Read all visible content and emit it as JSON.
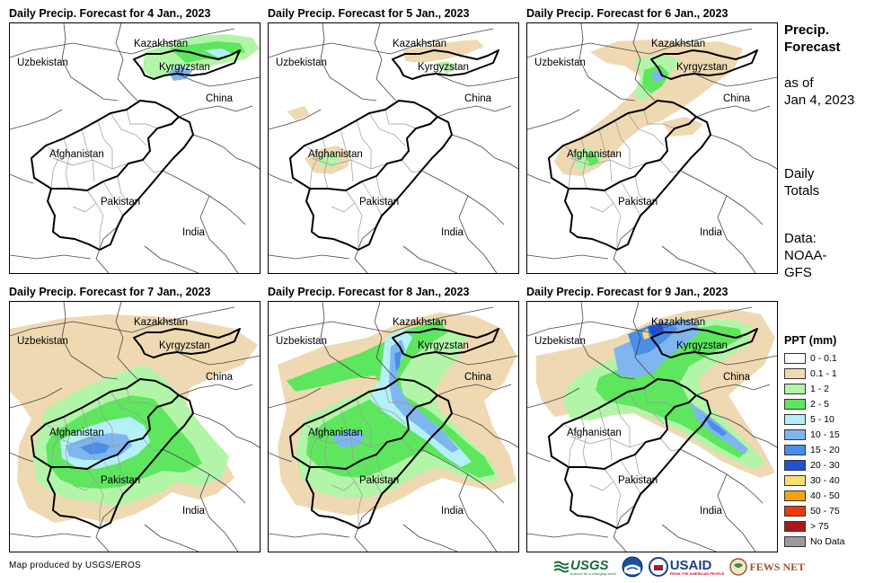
{
  "panels": [
    {
      "title": "Daily Precip. Forecast for 4 Jan., 2023"
    },
    {
      "title": "Daily Precip. Forecast for 5 Jan., 2023"
    },
    {
      "title": "Daily Precip. Forecast for 6 Jan., 2023"
    },
    {
      "title": "Daily Precip. Forecast for 7 Jan., 2023"
    },
    {
      "title": "Daily Precip. Forecast for 8 Jan., 2023"
    },
    {
      "title": "Daily Precip. Forecast for 9 Jan., 2023"
    }
  ],
  "map_labels": {
    "kazakhstan": "Kazakhstan",
    "uzbekistan": "Uzbekistan",
    "kyrgyzstan": "Kyrgyzstan",
    "china": "China",
    "afghanistan": "Afghanistan",
    "pakistan": "Pakistan",
    "india": "India"
  },
  "side": {
    "title": "Precip. Forecast",
    "as_of": "as of",
    "date": "Jan 4, 2023",
    "totals_line1": "Daily",
    "totals_line2": "Totals",
    "data_line1": "Data:",
    "data_line2": "NOAA-",
    "data_line3": "GFS"
  },
  "legend": {
    "title": "PPT (mm)",
    "items": [
      {
        "label": "0 - 0.1",
        "color": "#ffffff"
      },
      {
        "label": "0.1 - 1",
        "color": "#eed9b3"
      },
      {
        "label": "1 - 2",
        "color": "#b2f5a8"
      },
      {
        "label": "2 - 5",
        "color": "#5ee65e"
      },
      {
        "label": "5 - 10",
        "color": "#b4f0f8"
      },
      {
        "label": "10 - 15",
        "color": "#7fb6ef"
      },
      {
        "label": "15 - 20",
        "color": "#4a8ee8"
      },
      {
        "label": "20 - 30",
        "color": "#1c52d6"
      },
      {
        "label": "30 - 40",
        "color": "#f7de72"
      },
      {
        "label": "40 - 50",
        "color": "#f5a20a"
      },
      {
        "label": "50 - 75",
        "color": "#ee3a0c"
      },
      {
        "label": "> 75",
        "color": "#a81a1a"
      },
      {
        "label": "No Data",
        "color": "#9a9a9a"
      }
    ]
  },
  "footer": {
    "credit": "Map produced by USGS/EROS",
    "logo_usgs": "USGS",
    "logo_usgs_tag": "science for a changing world",
    "logo_noaa": "NOAA",
    "logo_usaid": "USAID",
    "logo_usaid_tag": "FROM THE AMERICAN PEOPLE",
    "logo_fews": "FEWS NET"
  }
}
